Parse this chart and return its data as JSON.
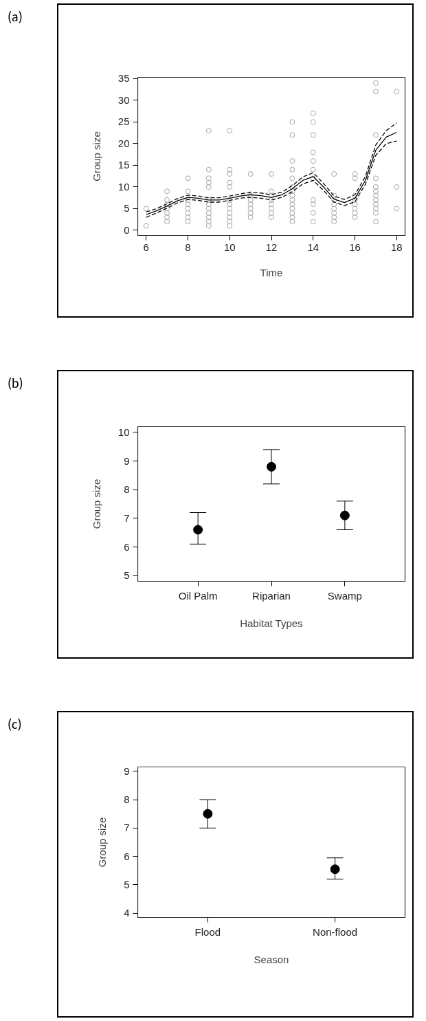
{
  "chart_data": [
    {
      "type": "scatter",
      "annotations": [
        "(a)"
      ],
      "xlabel": "Time",
      "ylabel": "Group size",
      "xlim": [
        5.6,
        18.4
      ],
      "ylim": [
        -1.2,
        35.3
      ],
      "xticks": [
        6,
        8,
        10,
        12,
        14,
        16,
        18
      ],
      "yticks": [
        0,
        5,
        10,
        15,
        20,
        25,
        30,
        35
      ],
      "grid": false,
      "series": [
        {
          "type": "scatter",
          "marker": "circle",
          "color": "#a6a6a6",
          "x": [
            6,
            6,
            7,
            7,
            7,
            7,
            7,
            7,
            7,
            8,
            8,
            8,
            8,
            8,
            8,
            8,
            8,
            9,
            9,
            9,
            9,
            9,
            9,
            9,
            9,
            9,
            9,
            9,
            9,
            10,
            10,
            10,
            10,
            10,
            10,
            10,
            10,
            10,
            10,
            10,
            10,
            11,
            11,
            11,
            11,
            11,
            11,
            11,
            12,
            12,
            12,
            12,
            12,
            12,
            12,
            12,
            13,
            13,
            13,
            13,
            13,
            13,
            13,
            13,
            13,
            13,
            13,
            13,
            13,
            13,
            14,
            14,
            14,
            14,
            14,
            14,
            14,
            14,
            14,
            14,
            14,
            15,
            15,
            15,
            15,
            15,
            15,
            15,
            15,
            16,
            16,
            16,
            16,
            16,
            16,
            16,
            16,
            17,
            17,
            17,
            17,
            17,
            17,
            17,
            17,
            17,
            17,
            17,
            17,
            18,
            18,
            18
          ],
          "values": [
            5,
            1,
            9,
            7,
            6,
            5,
            4,
            3,
            2,
            12,
            9,
            7,
            6,
            5,
            4,
            3,
            2,
            23,
            14,
            12,
            11,
            10,
            7,
            6,
            5,
            4,
            3,
            2,
            1,
            23,
            14,
            13,
            11,
            10,
            7,
            6,
            5,
            4,
            3,
            2,
            1,
            13,
            8,
            7,
            6,
            5,
            4,
            3,
            13,
            9,
            8,
            7,
            6,
            5,
            4,
            3,
            25,
            22,
            16,
            14,
            12,
            10,
            9,
            8,
            7,
            6,
            5,
            4,
            3,
            2,
            27,
            25,
            22,
            18,
            16,
            14,
            12,
            7,
            6,
            4,
            2,
            13,
            8,
            7,
            6,
            5,
            4,
            3,
            2,
            13,
            12,
            8,
            7,
            6,
            5,
            4,
            3,
            34,
            32,
            22,
            12,
            10,
            9,
            8,
            7,
            6,
            5,
            4,
            2,
            32,
            10,
            5
          ]
        },
        {
          "type": "line",
          "marker": "none",
          "color": "#000000",
          "line_style": "solid",
          "x": [
            6,
            6.5,
            7,
            7.5,
            8,
            8.5,
            9,
            9.5,
            10,
            10.5,
            11,
            11.5,
            12,
            12.5,
            13,
            13.5,
            14,
            14.5,
            15,
            15.5,
            16,
            16.5,
            17,
            17.5,
            18
          ],
          "values": [
            3.6,
            4.5,
            5.6,
            6.8,
            7.6,
            7.4,
            7.0,
            7.0,
            7.4,
            7.9,
            8.2,
            8.0,
            7.6,
            8.2,
            9.6,
            11.5,
            12.4,
            10.0,
            7.2,
            6.4,
            7.4,
            11.5,
            18.5,
            21.5,
            22.6
          ]
        },
        {
          "type": "line",
          "marker": "none",
          "color": "#000000",
          "line_style": "dashed",
          "x": [
            6,
            6.5,
            7,
            7.5,
            8,
            8.5,
            9,
            9.5,
            10,
            10.5,
            11,
            11.5,
            12,
            12.5,
            13,
            13.5,
            14,
            14.5,
            15,
            15.5,
            16,
            16.5,
            17,
            17.5,
            18
          ],
          "values": [
            3.0,
            4.0,
            5.1,
            6.3,
            7.1,
            6.9,
            6.5,
            6.5,
            6.9,
            7.4,
            7.6,
            7.4,
            7.0,
            7.6,
            8.9,
            10.7,
            11.5,
            9.2,
            6.5,
            5.7,
            6.6,
            10.6,
            17.3,
            20.0,
            20.6
          ]
        },
        {
          "type": "line",
          "marker": "none",
          "color": "#000000",
          "line_style": "dashed",
          "x": [
            6,
            6.5,
            7,
            7.5,
            8,
            8.5,
            9,
            9.5,
            10,
            10.5,
            11,
            11.5,
            12,
            12.5,
            13,
            13.5,
            14,
            14.5,
            15,
            15.5,
            16,
            16.5,
            17,
            17.5,
            18
          ],
          "values": [
            4.2,
            5.0,
            6.1,
            7.3,
            8.1,
            7.9,
            7.5,
            7.5,
            7.9,
            8.4,
            8.8,
            8.6,
            8.2,
            8.8,
            10.3,
            12.3,
            13.3,
            10.8,
            7.9,
            7.1,
            8.2,
            12.4,
            19.7,
            23.0,
            24.8
          ]
        }
      ]
    },
    {
      "type": "scatter",
      "annotations": [
        "(b)"
      ],
      "xlabel": "Habitat Types",
      "ylabel": "Group size",
      "categories": [
        "Oil Palm",
        "Riparian",
        "Swamp"
      ],
      "ylim": [
        4.8,
        10.2
      ],
      "yticks": [
        5,
        6,
        7,
        8,
        9,
        10
      ],
      "grid": false,
      "marker": "circle",
      "series": [
        {
          "color": "#000000",
          "values": [
            6.6,
            8.8,
            7.1
          ],
          "errors": [
            [
              6.1,
              7.2
            ],
            [
              8.2,
              9.4
            ],
            [
              6.6,
              7.6
            ]
          ]
        }
      ]
    },
    {
      "type": "scatter",
      "annotations": [
        "(c)"
      ],
      "xlabel": "Season",
      "ylabel": "Group size",
      "categories": [
        "Flood",
        "Non-flood"
      ],
      "ylim": [
        3.85,
        9.15
      ],
      "yticks": [
        4,
        5,
        6,
        7,
        8,
        9
      ],
      "grid": false,
      "marker": "circle",
      "series": [
        {
          "color": "#000000",
          "values": [
            7.5,
            5.55
          ],
          "errors": [
            [
              7.0,
              8.0
            ],
            [
              5.2,
              5.95
            ]
          ]
        }
      ]
    }
  ]
}
